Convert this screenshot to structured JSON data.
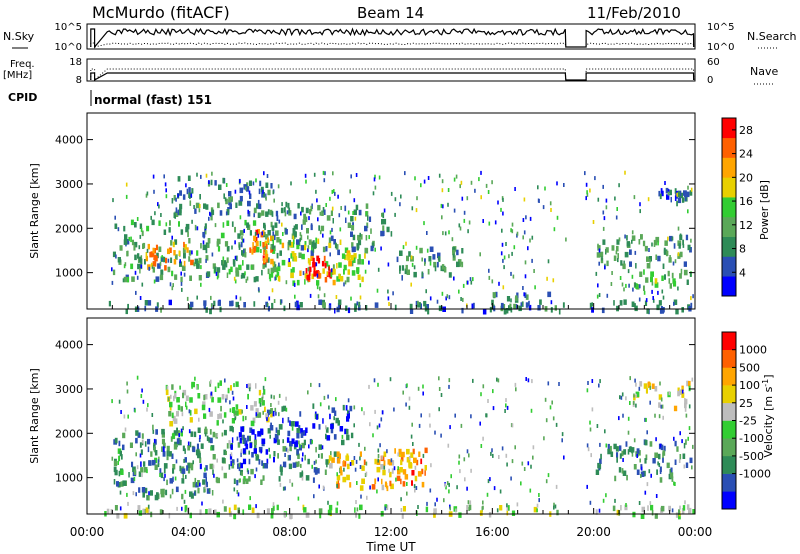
{
  "header": {
    "station": "McMurdo (fitACF)",
    "beam": "Beam 14",
    "date": "11/Feb/2010"
  },
  "nsky_panel": {
    "label": "N.Sky",
    "right_label": "N.Search",
    "ticks_left": [
      "10^5",
      "10^0"
    ],
    "ticks_right": [
      "10^5",
      "10^0"
    ]
  },
  "freq_panel": {
    "label_line1": "Freq.",
    "label_line2": "[MHz]",
    "ticks_left": [
      "18",
      "8"
    ],
    "right_label": "Nave",
    "ticks_right": [
      "60",
      "0"
    ]
  },
  "cpid_panel": {
    "label": "CPID",
    "value": "normal (fast) 151"
  },
  "chart_data": [
    {
      "type": "heatmap",
      "ylabel": "Slant Range [km]",
      "yticks": [
        1000,
        2000,
        3000,
        4000
      ],
      "ylim": [
        180,
        4600
      ],
      "xlim": [
        0,
        24
      ],
      "data_gap_hours": [
        18.9,
        19.6
      ],
      "colorbar": {
        "label": "Power [dB]",
        "ticks": [
          4,
          8,
          12,
          16,
          20,
          24,
          28
        ],
        "range": [
          0,
          30
        ],
        "colors": [
          "#0000ff",
          "#2a4fb4",
          "#2e8b57",
          "#5aa858",
          "#32cd32",
          "#e8d000",
          "#ffa500",
          "#ff6000",
          "#ff0000"
        ]
      },
      "regions": [
        {
          "t": [
            0.6,
            18.9
          ],
          "r": [
            180,
            400
          ],
          "level": 0.2
        },
        {
          "t": [
            19.7,
            23.9
          ],
          "r": [
            180,
            400
          ],
          "level": 0.2
        },
        {
          "t": [
            1.0,
            7.5
          ],
          "r": [
            900,
            2200
          ],
          "level": 0.35
        },
        {
          "t": [
            7.0,
            10.5
          ],
          "r": [
            800,
            1800
          ],
          "level": 0.55
        },
        {
          "t": [
            8.5,
            9.6
          ],
          "r": [
            900,
            1400
          ],
          "level": 0.95
        },
        {
          "t": [
            2.3,
            4.2
          ],
          "r": [
            1100,
            1700
          ],
          "level": 0.75
        },
        {
          "t": [
            6.3,
            7.3
          ],
          "r": [
            1300,
            2000
          ],
          "level": 0.8
        },
        {
          "t": [
            3.3,
            7.3
          ],
          "r": [
            2300,
            3200
          ],
          "level": 0.25
        },
        {
          "t": [
            7.2,
            12.0
          ],
          "r": [
            1500,
            2600
          ],
          "level": 0.3
        },
        {
          "t": [
            9.5,
            11.0
          ],
          "r": [
            900,
            1500
          ],
          "level": 0.55
        },
        {
          "t": [
            12.0,
            14.8
          ],
          "r": [
            900,
            1600
          ],
          "level": 0.3
        },
        {
          "t": [
            20.0,
            23.8
          ],
          "r": [
            1200,
            1900
          ],
          "level": 0.3
        },
        {
          "t": [
            21.5,
            23.8
          ],
          "r": [
            700,
            1100
          ],
          "level": 0.45
        },
        {
          "t": [
            22.5,
            23.8
          ],
          "r": [
            2600,
            3000
          ],
          "level": 0.2
        },
        {
          "t": [
            16.0,
            18.8
          ],
          "r": [
            180,
            600
          ],
          "level": 0.3
        }
      ]
    },
    {
      "type": "heatmap",
      "ylabel": "Slant Range [km]",
      "yticks": [
        1000,
        2000,
        3000,
        4000
      ],
      "ylim": [
        180,
        4600
      ],
      "xlim": [
        0,
        24
      ],
      "xticks": [
        "00:00",
        "04:00",
        "08:00",
        "12:00",
        "16:00",
        "20:00",
        "00:00"
      ],
      "xlabel": "Time UT",
      "colorbar": {
        "label": "Velocity [m s",
        "label_exp": "-1",
        "label_end": "]",
        "ticks": [
          1000,
          500,
          100,
          25,
          -25,
          -100,
          -500,
          -1000
        ],
        "colors": [
          "#0000ff",
          "#2a4fb4",
          "#2e8b57",
          "#5aa858",
          "#32cd32",
          "#bdbdbd",
          "#e8d000",
          "#ffa500",
          "#ff6000",
          "#ff0000"
        ]
      },
      "regions": [
        {
          "t": [
            0.6,
            18.9
          ],
          "r": [
            180,
            400
          ],
          "level": 0.5
        },
        {
          "t": [
            19.7,
            23.9
          ],
          "r": [
            180,
            400
          ],
          "level": 0.5
        },
        {
          "t": [
            1.0,
            7.0
          ],
          "r": [
            900,
            2200
          ],
          "level": 0.28
        },
        {
          "t": [
            2.0,
            4.5
          ],
          "r": [
            1200,
            1800
          ],
          "level": 0.2
        },
        {
          "t": [
            5.5,
            7.5
          ],
          "r": [
            1300,
            2200
          ],
          "level": 0.1
        },
        {
          "t": [
            7.5,
            10.0
          ],
          "r": [
            1000,
            1800
          ],
          "level": 0.25
        },
        {
          "t": [
            7.0,
            10.5
          ],
          "r": [
            1800,
            2700
          ],
          "level": 0.12
        },
        {
          "t": [
            9.5,
            12.5
          ],
          "r": [
            800,
            1600
          ],
          "level": 0.72
        },
        {
          "t": [
            11.5,
            13.5
          ],
          "r": [
            900,
            1700
          ],
          "level": 0.78
        },
        {
          "t": [
            1.5,
            5.0
          ],
          "r": [
            600,
            800
          ],
          "level": 0.28
        },
        {
          "t": [
            3.0,
            7.3
          ],
          "r": [
            2200,
            3200
          ],
          "level": 0.5
        },
        {
          "t": [
            20.0,
            23.8
          ],
          "r": [
            1000,
            1900
          ],
          "level": 0.25
        },
        {
          "t": [
            21.5,
            23.8
          ],
          "r": [
            2600,
            3200
          ],
          "level": 0.6
        }
      ]
    }
  ]
}
